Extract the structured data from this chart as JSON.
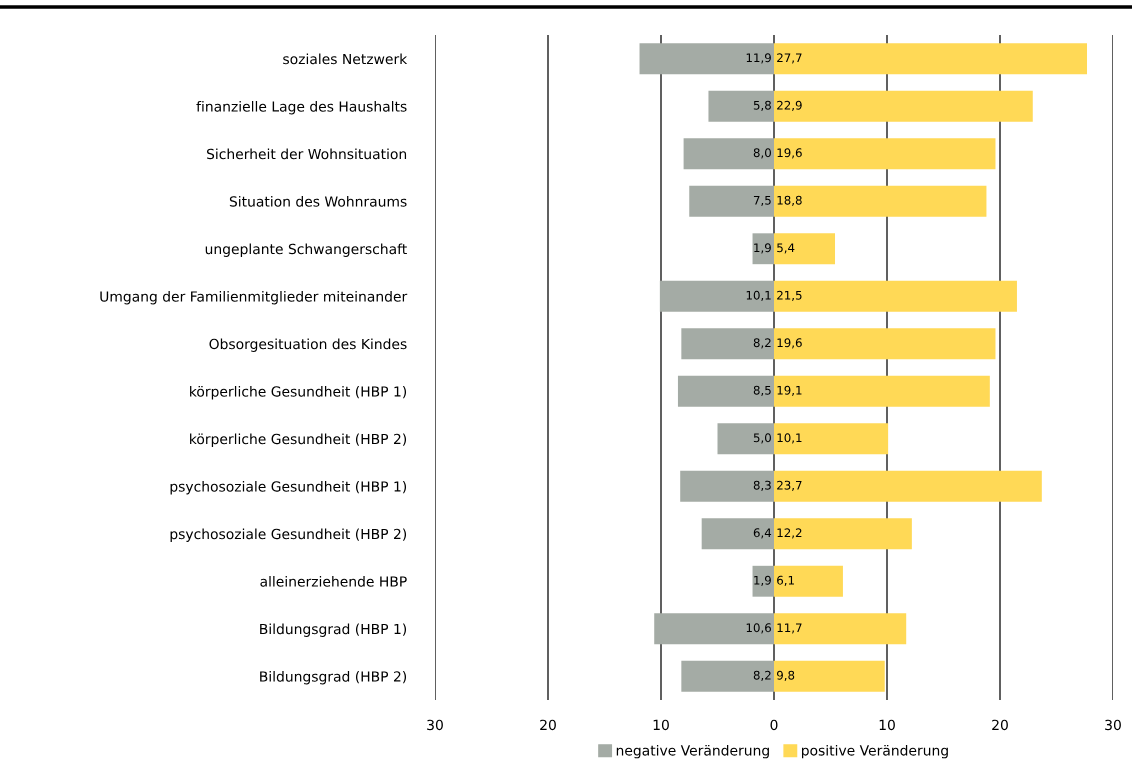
{
  "chart_data": {
    "type": "bar",
    "orientation": "horizontal",
    "categories": [
      "soziales Netzwerk",
      "finanzielle Lage des Haushalts",
      "Sicherheit der Wohnsituation",
      "Situation des Wohnraums",
      "ungeplante Schwangerschaft",
      "Umgang der Familienmitglieder miteinander",
      "Obsorgesituation des Kindes",
      "körperliche Gesundheit (HBP 1)",
      "körperliche Gesundheit (HBP 2)",
      "psychosoziale Gesundheit (HBP 1)",
      "psychosoziale Gesundheit (HBP 2)",
      "alleinerziehende HBP",
      "Bildungsgrad (HBP 1)",
      "Bildungsgrad (HBP 2)"
    ],
    "series": [
      {
        "name": "negative Veränderung",
        "color": "#a4aba5",
        "base": [
          -11.9,
          -5.8,
          -8.0,
          -7.5,
          -1.9,
          -10.1,
          -8.2,
          -8.5,
          -5.0,
          -8.3,
          -6.4,
          -1.9,
          -10.6,
          -8.2
        ],
        "values": [
          11.9,
          5.8,
          8.0,
          7.5,
          1.9,
          10.1,
          8.2,
          8.5,
          5.0,
          8.3,
          6.4,
          1.9,
          10.6,
          8.2
        ],
        "value_labels": [
          "11,9",
          "5,8",
          "8,0",
          "7,5",
          "1,9",
          "10,1",
          "8,2",
          "8,5",
          "5,0",
          "8,3",
          "6,4",
          "1,9",
          "10,6",
          "8,2"
        ]
      },
      {
        "name": "positive Veränderung",
        "color": "#ffd956",
        "values": [
          27.7,
          22.9,
          19.6,
          18.8,
          5.4,
          21.5,
          19.6,
          19.1,
          10.1,
          23.7,
          12.2,
          6.1,
          11.7,
          9.8
        ],
        "value_labels": [
          "27,7",
          "22,9",
          "19,6",
          "18,8",
          "5,4",
          "21,5",
          "19,6",
          "19,1",
          "10,1",
          "23,7",
          "12,2",
          "6,1",
          "11,7",
          "9,8"
        ]
      }
    ],
    "xlim": [
      -30,
      30
    ],
    "xticks": [
      {
        "value": -30,
        "label": "30"
      },
      {
        "value": -20,
        "label": "20"
      },
      {
        "value": -10,
        "label": "10"
      },
      0,
      10,
      20,
      30
    ],
    "grid": "x",
    "legend": "bottom"
  }
}
